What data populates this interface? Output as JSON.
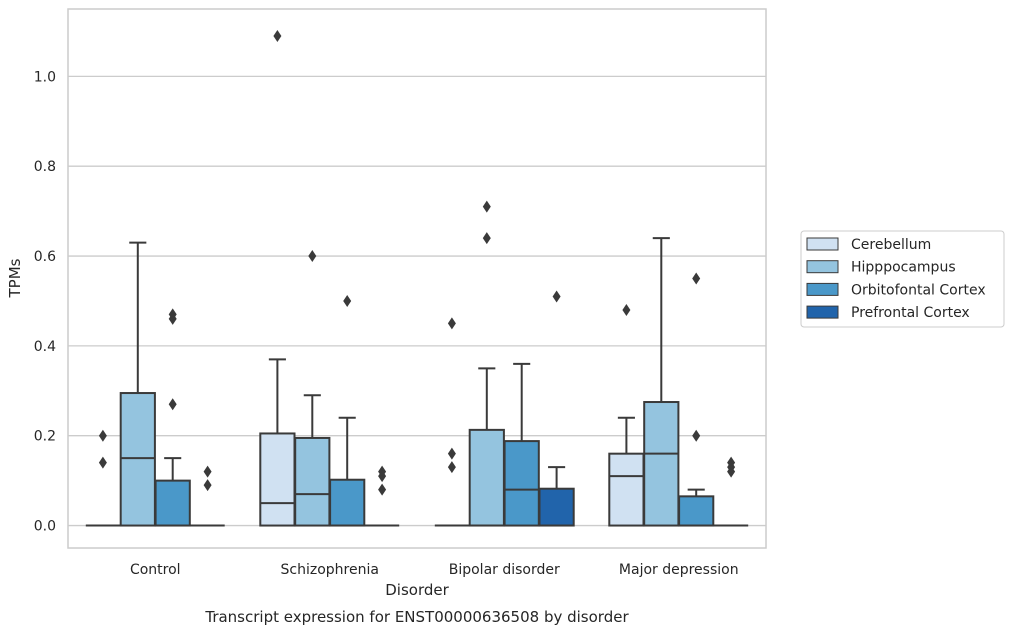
{
  "chart_data": {
    "type": "box",
    "title": "Transcript expression for ENST00000636508 by disorder",
    "xlabel": "Disorder",
    "ylabel": "TPMs",
    "ylim": [
      -0.05,
      1.15
    ],
    "yticks": [
      0.0,
      0.2,
      0.4,
      0.6,
      0.8,
      1.0
    ],
    "ytick_labels": [
      "0.0",
      "0.2",
      "0.4",
      "0.6",
      "0.8",
      "1.0"
    ],
    "grid": true,
    "legend_position": "right",
    "categories": [
      "Control",
      "Schizophrenia",
      "Bipolar disorder",
      "Major depression"
    ],
    "series": [
      {
        "name": "Cerebellum",
        "color": "#d0e1f2",
        "boxes": [
          {
            "q1": 0.0,
            "median": 0.0,
            "q3": 0.0,
            "whisker_low": 0.0,
            "whisker_high": 0.0,
            "outliers": [
              0.2,
              0.14
            ]
          },
          {
            "q1": 0.0,
            "median": 0.05,
            "q3": 0.205,
            "whisker_low": 0.0,
            "whisker_high": 0.37,
            "outliers": [
              1.09
            ]
          },
          {
            "q1": 0.0,
            "median": 0.0,
            "q3": 0.0,
            "whisker_low": 0.0,
            "whisker_high": 0.0,
            "outliers": [
              0.45,
              0.16,
              0.13
            ]
          },
          {
            "q1": 0.0,
            "median": 0.11,
            "q3": 0.16,
            "whisker_low": 0.0,
            "whisker_high": 0.24,
            "outliers": [
              0.48
            ]
          }
        ]
      },
      {
        "name": "Hipppocampus",
        "color": "#94c4df",
        "boxes": [
          {
            "q1": 0.0,
            "median": 0.15,
            "q3": 0.295,
            "whisker_low": 0.0,
            "whisker_high": 0.63,
            "outliers": []
          },
          {
            "q1": 0.0,
            "median": 0.07,
            "q3": 0.195,
            "whisker_low": 0.0,
            "whisker_high": 0.29,
            "outliers": [
              0.6
            ]
          },
          {
            "q1": 0.0,
            "median": 0.0,
            "q3": 0.213,
            "whisker_low": 0.0,
            "whisker_high": 0.35,
            "outliers": [
              0.71,
              0.64
            ]
          },
          {
            "q1": 0.0,
            "median": 0.16,
            "q3": 0.275,
            "whisker_low": 0.0,
            "whisker_high": 0.64,
            "outliers": []
          }
        ]
      },
      {
        "name": "Orbitofontal Cortex",
        "color": "#4a98c9",
        "boxes": [
          {
            "q1": 0.0,
            "median": 0.0,
            "q3": 0.1,
            "whisker_low": 0.0,
            "whisker_high": 0.15,
            "outliers": [
              0.47,
              0.46,
              0.27
            ]
          },
          {
            "q1": 0.0,
            "median": 0.0,
            "q3": 0.102,
            "whisker_low": 0.0,
            "whisker_high": 0.24,
            "outliers": [
              0.5
            ]
          },
          {
            "q1": 0.0,
            "median": 0.08,
            "q3": 0.188,
            "whisker_low": 0.0,
            "whisker_high": 0.36,
            "outliers": []
          },
          {
            "q1": 0.0,
            "median": 0.0,
            "q3": 0.065,
            "whisker_low": 0.0,
            "whisker_high": 0.08,
            "outliers": [
              0.55,
              0.2
            ]
          }
        ]
      },
      {
        "name": "Prefrontal Cortex",
        "color": "#2164ab",
        "boxes": [
          {
            "q1": 0.0,
            "median": 0.0,
            "q3": 0.0,
            "whisker_low": 0.0,
            "whisker_high": 0.0,
            "outliers": [
              0.12,
              0.09
            ]
          },
          {
            "q1": 0.0,
            "median": 0.0,
            "q3": 0.0,
            "whisker_low": 0.0,
            "whisker_high": 0.0,
            "outliers": [
              0.12,
              0.11,
              0.08
            ]
          },
          {
            "q1": 0.0,
            "median": 0.0,
            "q3": 0.082,
            "whisker_low": 0.0,
            "whisker_high": 0.13,
            "outliers": [
              0.51
            ]
          },
          {
            "q1": 0.0,
            "median": 0.0,
            "q3": 0.0,
            "whisker_low": 0.0,
            "whisker_high": 0.0,
            "outliers": [
              0.14,
              0.13,
              0.12
            ]
          }
        ]
      }
    ]
  }
}
